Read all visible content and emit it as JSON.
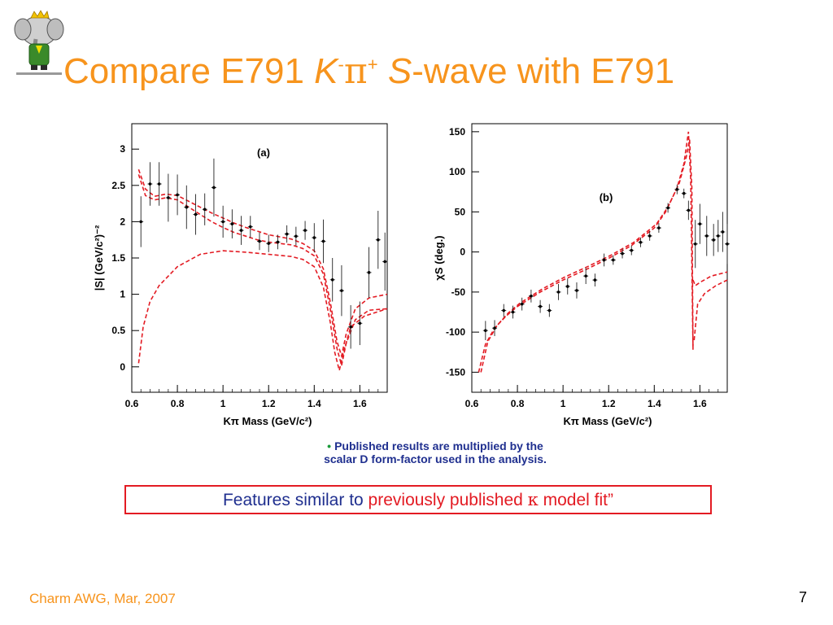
{
  "slide": {
    "title": {
      "part1": "Compare E791 ",
      "k": "K",
      "k_sup": "-",
      "pi": "π",
      "pi_sup": "+",
      "s": "S",
      "part2": "-wave with E791"
    },
    "note": {
      "bullet": "•",
      "line1": "Published results are multiplied by the",
      "line2": "scalar D form-factor used in the analysis."
    },
    "box": {
      "text_blue": "Features similar to ",
      "text_red": "previously published ",
      "kappa": "κ",
      "text_red2": " model fit”"
    },
    "footer": "Charm AWG, Mar, 2007",
    "page_number": "7",
    "colors": {
      "title": "#f7941d",
      "note": "#1f2f8f",
      "box_border": "#e31b23",
      "curve": "#e31b23"
    }
  },
  "chart_data": [
    {
      "type": "scatter",
      "panel_label": "(a)",
      "xlabel": "Kπ Mass (GeV/c²)",
      "ylabel": "|S|  (GeV/c²)⁻²",
      "xlim": [
        0.6,
        1.72
      ],
      "ylim": [
        -0.35,
        3.35
      ],
      "xticks": [
        0.6,
        0.8,
        1,
        1.2,
        1.4,
        1.6
      ],
      "xtick_labels": [
        "0.6",
        "0.8",
        "1",
        "1.2",
        "1.4",
        "1.6"
      ],
      "yticks": [
        0,
        0.5,
        1,
        1.5,
        2,
        2.5,
        3
      ],
      "ytick_labels": [
        "0",
        "0.5",
        "1",
        "1.5",
        "2",
        "2.5",
        "3"
      ],
      "points": [
        {
          "x": 0.64,
          "y": 2.0,
          "err": 0.35
        },
        {
          "x": 0.68,
          "y": 2.52,
          "err": 0.3
        },
        {
          "x": 0.72,
          "y": 2.52,
          "err": 0.3
        },
        {
          "x": 0.76,
          "y": 2.33,
          "err": 0.33
        },
        {
          "x": 0.8,
          "y": 2.37,
          "err": 0.28
        },
        {
          "x": 0.84,
          "y": 2.2,
          "err": 0.3
        },
        {
          "x": 0.88,
          "y": 2.1,
          "err": 0.28
        },
        {
          "x": 0.92,
          "y": 2.17,
          "err": 0.22
        },
        {
          "x": 0.96,
          "y": 2.47,
          "err": 0.4
        },
        {
          "x": 1.0,
          "y": 2.0,
          "err": 0.22
        },
        {
          "x": 1.04,
          "y": 1.97,
          "err": 0.2
        },
        {
          "x": 1.08,
          "y": 1.88,
          "err": 0.2
        },
        {
          "x": 1.12,
          "y": 1.93,
          "err": 0.15
        },
        {
          "x": 1.16,
          "y": 1.73,
          "err": 0.12
        },
        {
          "x": 1.2,
          "y": 1.7,
          "err": 0.12
        },
        {
          "x": 1.24,
          "y": 1.72,
          "err": 0.1
        },
        {
          "x": 1.28,
          "y": 1.83,
          "err": 0.12
        },
        {
          "x": 1.32,
          "y": 1.8,
          "err": 0.13
        },
        {
          "x": 1.36,
          "y": 1.88,
          "err": 0.13
        },
        {
          "x": 1.4,
          "y": 1.78,
          "err": 0.2
        },
        {
          "x": 1.44,
          "y": 1.73,
          "err": 0.3
        },
        {
          "x": 1.48,
          "y": 1.2,
          "err": 0.3
        },
        {
          "x": 1.52,
          "y": 1.05,
          "err": 0.35
        },
        {
          "x": 1.56,
          "y": 0.55,
          "err": 0.3
        },
        {
          "x": 1.6,
          "y": 0.6,
          "err": 0.3
        },
        {
          "x": 1.64,
          "y": 1.3,
          "err": 0.35
        },
        {
          "x": 1.68,
          "y": 1.75,
          "err": 0.4
        },
        {
          "x": 1.71,
          "y": 1.45,
          "err": 0.4
        }
      ],
      "curves": [
        {
          "points": [
            [
              0.63,
              2.72
            ],
            [
              0.66,
              2.45
            ],
            [
              0.7,
              2.35
            ],
            [
              0.75,
              2.38
            ],
            [
              0.8,
              2.36
            ],
            [
              0.85,
              2.28
            ],
            [
              0.9,
              2.2
            ],
            [
              0.95,
              2.12
            ],
            [
              1.0,
              2.05
            ],
            [
              1.05,
              1.98
            ],
            [
              1.1,
              1.92
            ],
            [
              1.15,
              1.87
            ],
            [
              1.2,
              1.82
            ],
            [
              1.25,
              1.79
            ],
            [
              1.3,
              1.76
            ],
            [
              1.35,
              1.7
            ],
            [
              1.4,
              1.6
            ],
            [
              1.44,
              1.35
            ],
            [
              1.47,
              0.9
            ],
            [
              1.5,
              0.35
            ],
            [
              1.52,
              0.15
            ],
            [
              1.54,
              0.45
            ],
            [
              1.58,
              0.8
            ],
            [
              1.64,
              0.95
            ],
            [
              1.72,
              1.0
            ]
          ]
        },
        {
          "points": [
            [
              0.63,
              2.65
            ],
            [
              0.66,
              2.36
            ],
            [
              0.7,
              2.3
            ],
            [
              0.75,
              2.33
            ],
            [
              0.8,
              2.3
            ],
            [
              0.85,
              2.2
            ],
            [
              0.9,
              2.1
            ],
            [
              0.95,
              2.0
            ],
            [
              1.0,
              1.92
            ],
            [
              1.05,
              1.85
            ],
            [
              1.1,
              1.8
            ],
            [
              1.15,
              1.75
            ],
            [
              1.2,
              1.72
            ],
            [
              1.25,
              1.7
            ],
            [
              1.3,
              1.68
            ],
            [
              1.35,
              1.63
            ],
            [
              1.4,
              1.53
            ],
            [
              1.44,
              1.28
            ],
            [
              1.47,
              0.8
            ],
            [
              1.5,
              0.25
            ],
            [
              1.52,
              0.02
            ],
            [
              1.54,
              0.32
            ],
            [
              1.58,
              0.65
            ],
            [
              1.64,
              0.78
            ],
            [
              1.72,
              0.8
            ]
          ]
        },
        {
          "points": [
            [
              0.63,
              0.05
            ],
            [
              0.65,
              0.55
            ],
            [
              0.68,
              0.9
            ],
            [
              0.72,
              1.12
            ],
            [
              0.8,
              1.38
            ],
            [
              0.9,
              1.55
            ],
            [
              1.0,
              1.6
            ],
            [
              1.1,
              1.58
            ],
            [
              1.2,
              1.55
            ],
            [
              1.3,
              1.52
            ],
            [
              1.35,
              1.48
            ],
            [
              1.4,
              1.38
            ],
            [
              1.44,
              1.1
            ],
            [
              1.47,
              0.62
            ],
            [
              1.49,
              0.2
            ],
            [
              1.51,
              -0.05
            ],
            [
              1.53,
              0.22
            ],
            [
              1.56,
              0.55
            ],
            [
              1.62,
              0.7
            ],
            [
              1.72,
              0.8
            ]
          ]
        }
      ]
    },
    {
      "type": "scatter",
      "panel_label": "(b)",
      "xlabel": "Kπ Mass (GeV/c²)",
      "ylabel": "χS  (deg.)",
      "xlim": [
        0.6,
        1.72
      ],
      "ylim": [
        -175,
        160
      ],
      "xticks": [
        0.6,
        0.8,
        1,
        1.2,
        1.4,
        1.6
      ],
      "xtick_labels": [
        "0.6",
        "0.8",
        "1",
        "1.2",
        "1.4",
        "1.6"
      ],
      "yticks": [
        -150,
        -100,
        -50,
        0,
        50,
        100,
        150
      ],
      "ytick_labels": [
        "-150",
        "-100",
        "-50",
        "0",
        "50",
        "100",
        "150"
      ],
      "points": [
        {
          "x": 0.66,
          "y": -98,
          "err": 12
        },
        {
          "x": 0.7,
          "y": -95,
          "err": 10
        },
        {
          "x": 0.74,
          "y": -73,
          "err": 8
        },
        {
          "x": 0.78,
          "y": -75,
          "err": 8
        },
        {
          "x": 0.82,
          "y": -65,
          "err": 8
        },
        {
          "x": 0.86,
          "y": -55,
          "err": 8
        },
        {
          "x": 0.9,
          "y": -68,
          "err": 8
        },
        {
          "x": 0.94,
          "y": -73,
          "err": 8
        },
        {
          "x": 0.98,
          "y": -50,
          "err": 10
        },
        {
          "x": 1.02,
          "y": -43,
          "err": 10
        },
        {
          "x": 1.06,
          "y": -48,
          "err": 10
        },
        {
          "x": 1.1,
          "y": -30,
          "err": 10
        },
        {
          "x": 1.14,
          "y": -35,
          "err": 8
        },
        {
          "x": 1.18,
          "y": -10,
          "err": 8
        },
        {
          "x": 1.22,
          "y": -10,
          "err": 6
        },
        {
          "x": 1.26,
          "y": -2,
          "err": 6
        },
        {
          "x": 1.3,
          "y": 2,
          "err": 6
        },
        {
          "x": 1.34,
          "y": 12,
          "err": 6
        },
        {
          "x": 1.38,
          "y": 20,
          "err": 6
        },
        {
          "x": 1.42,
          "y": 30,
          "err": 6
        },
        {
          "x": 1.46,
          "y": 55,
          "err": 6
        },
        {
          "x": 1.5,
          "y": 78,
          "err": 6
        },
        {
          "x": 1.53,
          "y": 73,
          "err": 6
        },
        {
          "x": 1.55,
          "y": 52,
          "err": 12
        },
        {
          "x": 1.58,
          "y": 10,
          "err": 30
        },
        {
          "x": 1.6,
          "y": 35,
          "err": 25
        },
        {
          "x": 1.63,
          "y": 20,
          "err": 25
        },
        {
          "x": 1.66,
          "y": 15,
          "err": 20
        },
        {
          "x": 1.68,
          "y": 20,
          "err": 20
        },
        {
          "x": 1.7,
          "y": 25,
          "err": 25
        },
        {
          "x": 1.72,
          "y": 10,
          "err": 25
        }
      ],
      "curves": [
        {
          "points": [
            [
              0.63,
              -150
            ],
            [
              0.66,
              -115
            ],
            [
              0.7,
              -95
            ],
            [
              0.75,
              -80
            ],
            [
              0.8,
              -68
            ],
            [
              0.9,
              -50
            ],
            [
              1.0,
              -35
            ],
            [
              1.1,
              -22
            ],
            [
              1.2,
              -8
            ],
            [
              1.3,
              8
            ],
            [
              1.4,
              30
            ],
            [
              1.45,
              50
            ],
            [
              1.5,
              80
            ],
            [
              1.53,
              110
            ],
            [
              1.55,
              150
            ],
            [
              1.56,
              90
            ],
            [
              1.57,
              -120
            ]
          ]
        },
        {
          "points": [
            [
              0.64,
              -150
            ],
            [
              0.67,
              -112
            ],
            [
              0.71,
              -92
            ],
            [
              0.76,
              -76
            ],
            [
              0.81,
              -64
            ],
            [
              0.91,
              -46
            ],
            [
              1.01,
              -31
            ],
            [
              1.11,
              -18
            ],
            [
              1.21,
              -4
            ],
            [
              1.31,
              12
            ],
            [
              1.41,
              35
            ],
            [
              1.46,
              56
            ],
            [
              1.51,
              86
            ],
            [
              1.54,
              118
            ],
            [
              1.555,
              140
            ],
            [
              1.565,
              80
            ],
            [
              1.57,
              -122
            ]
          ]
        },
        {
          "points": [
            [
              1.57,
              -35
            ],
            [
              1.58,
              -42
            ],
            [
              1.6,
              -38
            ],
            [
              1.65,
              -30
            ],
            [
              1.72,
              -25
            ]
          ]
        },
        {
          "points": [
            [
              1.575,
              -110
            ],
            [
              1.59,
              -65
            ],
            [
              1.62,
              -52
            ],
            [
              1.67,
              -42
            ],
            [
              1.72,
              -35
            ]
          ]
        }
      ]
    }
  ]
}
